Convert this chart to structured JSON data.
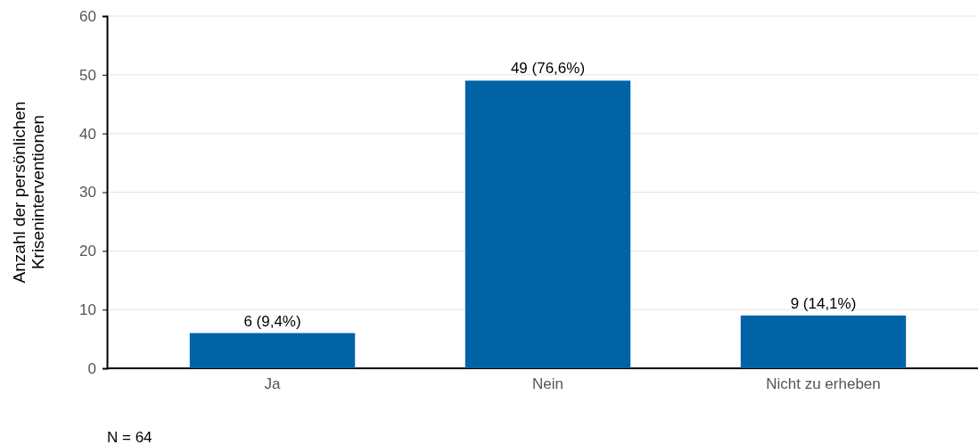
{
  "chart_data": {
    "type": "bar",
    "ylabel": "Anzahl der persönlichen\nKriseninterventionen",
    "categories": [
      "Ja",
      "Nein",
      "Nicht zu erheben"
    ],
    "values": [
      6,
      49,
      9
    ],
    "value_labels": [
      "6 (9,4%)",
      "49 (76,6%)",
      "9 (14,1%)"
    ],
    "color": "#0063a6",
    "ylim": [
      0,
      60
    ],
    "yticks": [
      0,
      10,
      20,
      30,
      40,
      50,
      60
    ],
    "grid": "y",
    "annotations": [
      "N = 64"
    ]
  }
}
